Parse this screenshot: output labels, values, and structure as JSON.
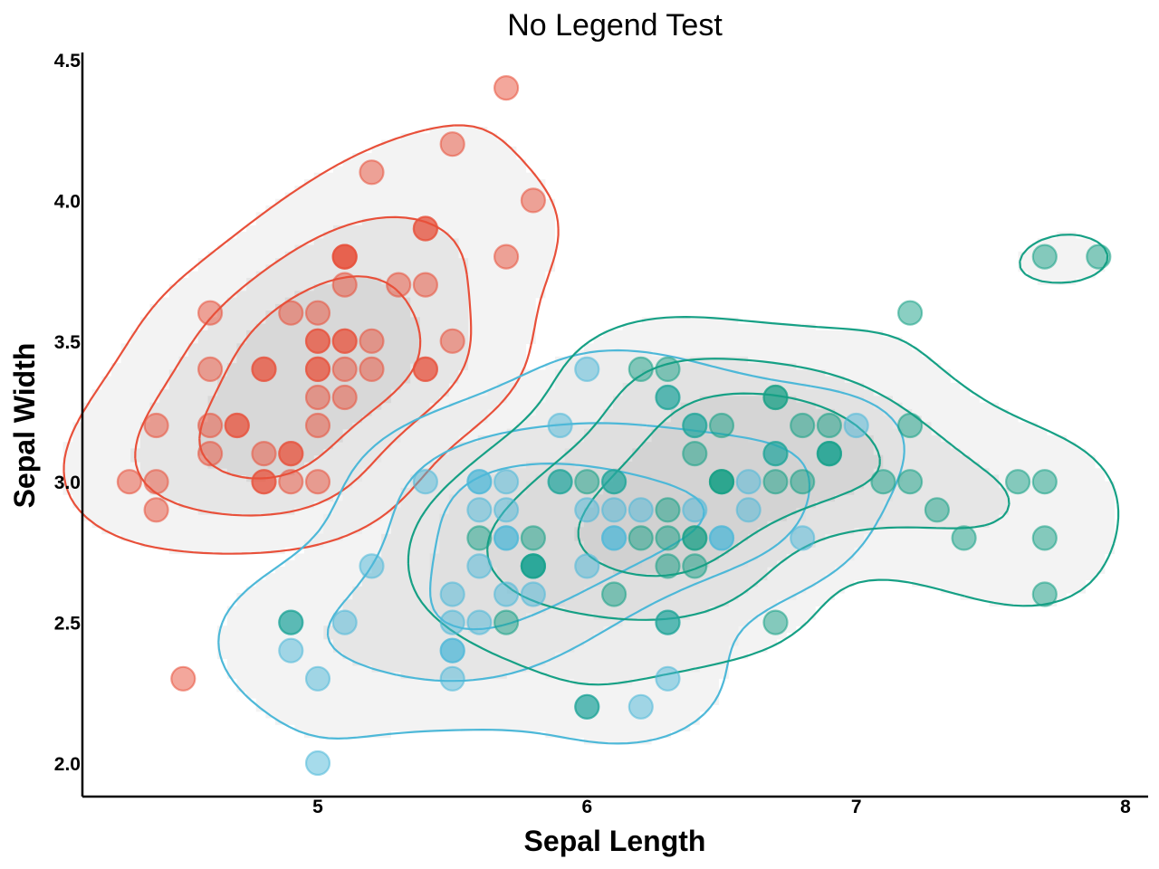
{
  "chart_data": {
    "type": "scatter",
    "title": "No Legend Test",
    "xlabel": "Sepal Length",
    "ylabel": "Sepal Width",
    "xlim": [
      4.1,
      8.1
    ],
    "ylim": [
      1.88,
      4.52
    ],
    "xticks": [
      5,
      6,
      7,
      8
    ],
    "xtick_labels": [
      "5",
      "6",
      "7",
      "8"
    ],
    "yticks": [
      2.0,
      2.5,
      3.0,
      3.5,
      4.0,
      4.5
    ],
    "ytick_labels": [
      "2.0",
      "2.5",
      "3.0",
      "3.5",
      "4.0",
      "4.5"
    ],
    "legend": "none",
    "grid": false,
    "overlay": "kde density contours per group, 3 levels, grey filled",
    "series": [
      {
        "color": "#e8503a",
        "points": [
          [
            5.1,
            3.5
          ],
          [
            4.9,
            3.0
          ],
          [
            4.7,
            3.2
          ],
          [
            4.6,
            3.1
          ],
          [
            5.0,
            3.6
          ],
          [
            5.4,
            3.9
          ],
          [
            4.6,
            3.4
          ],
          [
            5.0,
            3.4
          ],
          [
            4.4,
            2.9
          ],
          [
            4.9,
            3.1
          ],
          [
            5.4,
            3.7
          ],
          [
            4.8,
            3.4
          ],
          [
            4.8,
            3.0
          ],
          [
            4.3,
            3.0
          ],
          [
            5.8,
            4.0
          ],
          [
            5.7,
            4.4
          ],
          [
            5.4,
            3.9
          ],
          [
            5.1,
            3.5
          ],
          [
            5.7,
            3.8
          ],
          [
            5.1,
            3.8
          ],
          [
            5.4,
            3.4
          ],
          [
            5.1,
            3.7
          ],
          [
            4.6,
            3.6
          ],
          [
            5.1,
            3.3
          ],
          [
            4.8,
            3.4
          ],
          [
            5.0,
            3.0
          ],
          [
            5.0,
            3.4
          ],
          [
            5.2,
            3.5
          ],
          [
            5.2,
            3.4
          ],
          [
            4.7,
            3.2
          ],
          [
            4.8,
            3.1
          ],
          [
            5.4,
            3.4
          ],
          [
            5.2,
            4.1
          ],
          [
            5.5,
            4.2
          ],
          [
            4.9,
            3.1
          ],
          [
            5.0,
            3.2
          ],
          [
            5.5,
            3.5
          ],
          [
            4.9,
            3.6
          ],
          [
            4.4,
            3.0
          ],
          [
            5.1,
            3.4
          ],
          [
            5.0,
            3.5
          ],
          [
            4.5,
            2.3
          ],
          [
            4.4,
            3.2
          ],
          [
            5.0,
            3.5
          ],
          [
            5.1,
            3.8
          ],
          [
            4.8,
            3.0
          ],
          [
            5.1,
            3.8
          ],
          [
            4.6,
            3.2
          ],
          [
            5.3,
            3.7
          ],
          [
            5.0,
            3.3
          ]
        ]
      },
      {
        "color": "#4db8d8",
        "points": [
          [
            5.5,
            2.3
          ],
          [
            5.7,
            2.8
          ],
          [
            4.9,
            2.4
          ],
          [
            5.2,
            2.7
          ],
          [
            5.0,
            2.0
          ],
          [
            5.9,
            3.0
          ],
          [
            6.0,
            2.2
          ],
          [
            5.6,
            2.9
          ],
          [
            5.6,
            3.0
          ],
          [
            5.8,
            2.7
          ],
          [
            6.2,
            2.2
          ],
          [
            5.6,
            2.5
          ],
          [
            6.1,
            2.8
          ],
          [
            6.3,
            2.5
          ],
          [
            6.1,
            2.8
          ],
          [
            6.4,
            2.9
          ],
          [
            6.6,
            3.0
          ],
          [
            6.0,
            2.9
          ],
          [
            5.7,
            2.6
          ],
          [
            5.5,
            2.4
          ],
          [
            5.5,
            2.4
          ],
          [
            5.8,
            2.7
          ],
          [
            6.0,
            2.7
          ],
          [
            5.4,
            3.0
          ],
          [
            6.0,
            3.4
          ],
          [
            6.3,
            2.3
          ],
          [
            5.6,
            3.0
          ],
          [
            5.5,
            2.5
          ],
          [
            5.5,
            2.6
          ],
          [
            6.1,
            3.0
          ],
          [
            5.8,
            2.6
          ],
          [
            5.0,
            2.3
          ],
          [
            5.6,
            2.7
          ],
          [
            5.7,
            3.0
          ],
          [
            5.7,
            2.9
          ],
          [
            6.2,
            2.9
          ],
          [
            5.1,
            2.5
          ],
          [
            5.7,
            2.8
          ],
          [
            4.9,
            2.5
          ],
          [
            6.5,
            2.8
          ],
          [
            7.0,
            3.2
          ],
          [
            6.4,
            3.2
          ],
          [
            6.9,
            3.1
          ],
          [
            6.5,
            2.8
          ],
          [
            6.3,
            3.3
          ],
          [
            6.6,
            2.9
          ],
          [
            5.9,
            3.2
          ],
          [
            6.1,
            2.9
          ],
          [
            6.7,
            3.1
          ],
          [
            6.8,
            2.8
          ]
        ]
      },
      {
        "color": "#16a085",
        "points": [
          [
            6.3,
            3.3
          ],
          [
            5.8,
            2.7
          ],
          [
            7.1,
            3.0
          ],
          [
            6.3,
            2.9
          ],
          [
            6.5,
            3.0
          ],
          [
            7.6,
            3.0
          ],
          [
            4.9,
            2.5
          ],
          [
            7.3,
            2.9
          ],
          [
            6.7,
            2.5
          ],
          [
            7.2,
            3.6
          ],
          [
            6.5,
            3.2
          ],
          [
            6.4,
            2.7
          ],
          [
            6.8,
            3.0
          ],
          [
            5.7,
            2.5
          ],
          [
            5.8,
            2.8
          ],
          [
            6.4,
            3.2
          ],
          [
            6.5,
            3.0
          ],
          [
            7.7,
            3.8
          ],
          [
            7.7,
            2.6
          ],
          [
            6.0,
            2.2
          ],
          [
            6.9,
            3.2
          ],
          [
            5.6,
            2.8
          ],
          [
            7.7,
            2.8
          ],
          [
            6.3,
            2.7
          ],
          [
            6.7,
            3.3
          ],
          [
            7.2,
            3.2
          ],
          [
            6.2,
            2.8
          ],
          [
            6.1,
            3.0
          ],
          [
            6.4,
            2.8
          ],
          [
            7.2,
            3.0
          ],
          [
            7.4,
            2.8
          ],
          [
            7.9,
            3.8
          ],
          [
            6.4,
            2.8
          ],
          [
            6.3,
            2.8
          ],
          [
            6.1,
            2.6
          ],
          [
            7.7,
            3.0
          ],
          [
            6.3,
            3.4
          ],
          [
            6.4,
            3.1
          ],
          [
            6.0,
            3.0
          ],
          [
            6.9,
            3.1
          ],
          [
            6.7,
            3.1
          ],
          [
            6.9,
            3.1
          ],
          [
            5.8,
            2.7
          ],
          [
            6.8,
            3.2
          ],
          [
            6.7,
            3.3
          ],
          [
            6.7,
            3.0
          ],
          [
            6.3,
            2.5
          ],
          [
            6.5,
            3.0
          ],
          [
            6.2,
            3.4
          ],
          [
            5.9,
            3.0
          ]
        ]
      }
    ]
  }
}
